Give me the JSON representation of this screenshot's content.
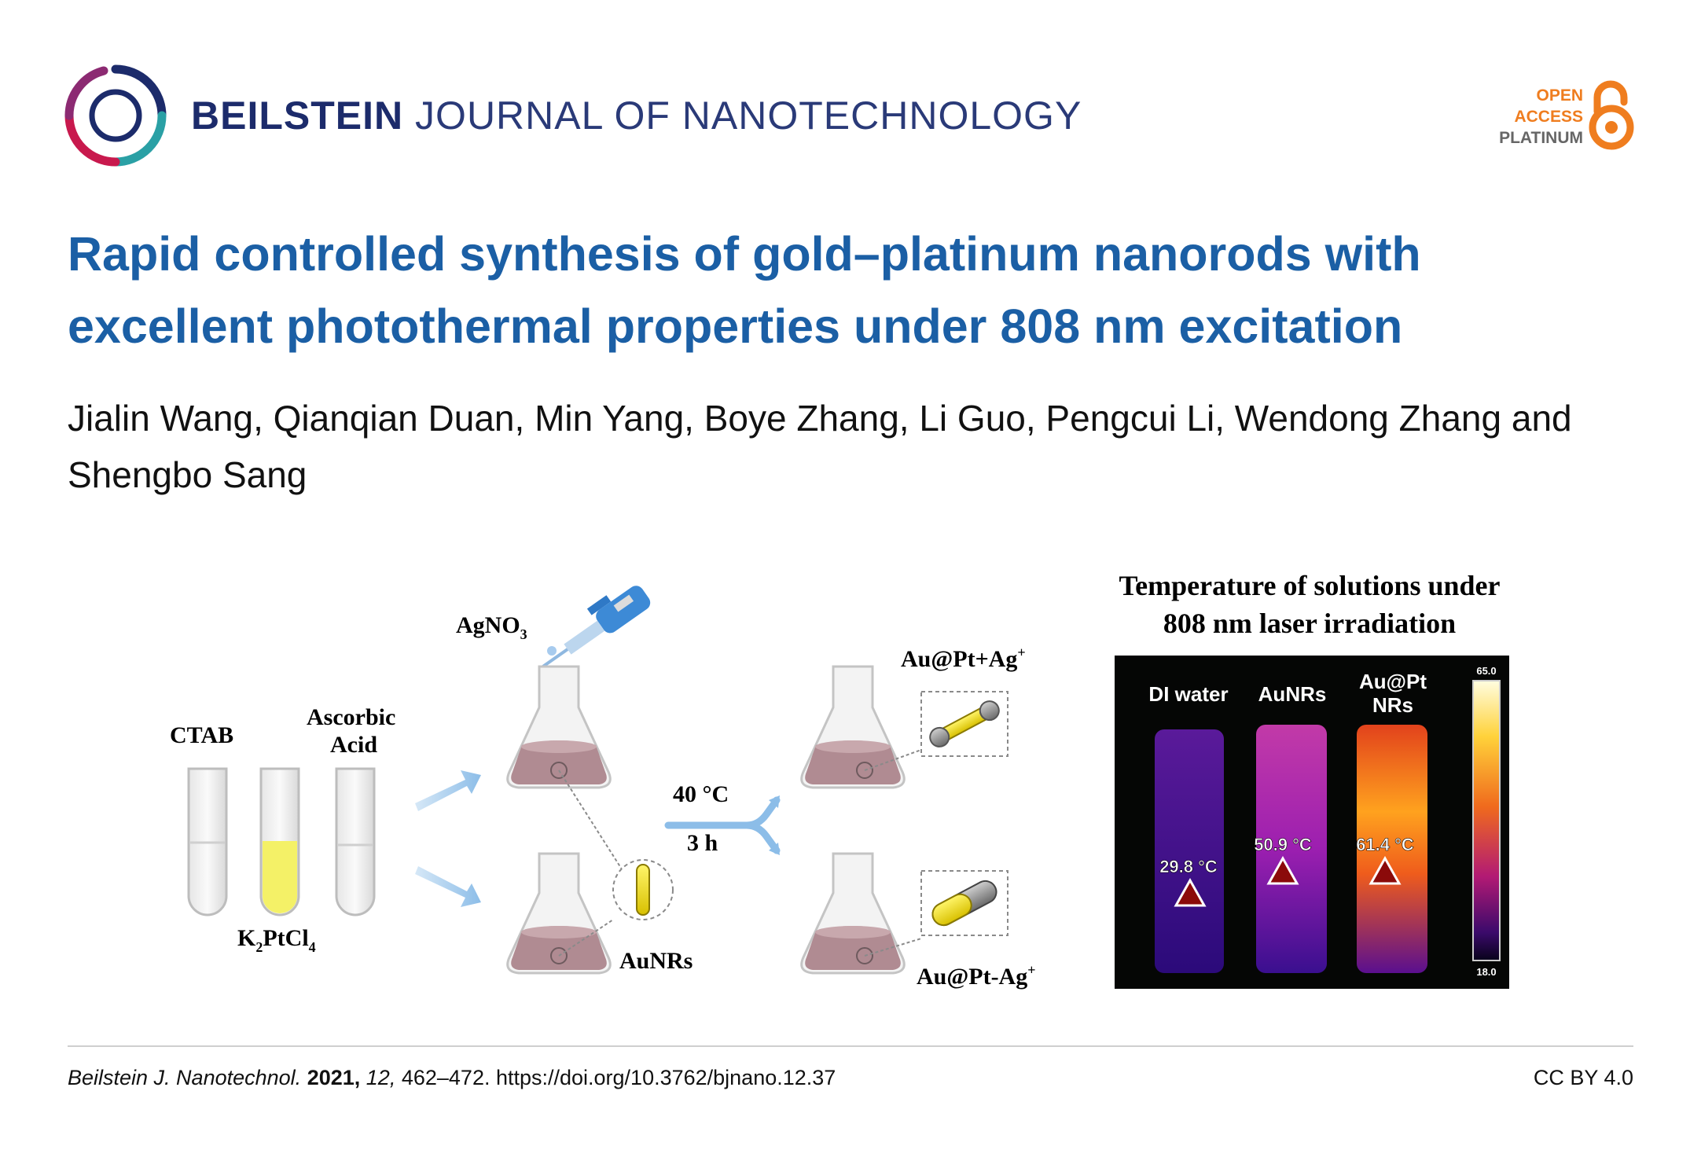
{
  "header": {
    "journal_bold": "BEILSTEIN",
    "journal_rest": "JOURNAL OF NANOTECHNOLOGY",
    "open_access": {
      "line1": "OPEN",
      "line2": "ACCESS",
      "line3": "PLATINUM"
    },
    "colors": {
      "journal": "#1c2b6b",
      "open_access": "#ef7d1f",
      "title": "#1b5fa5"
    }
  },
  "article": {
    "title": "Rapid controlled synthesis of gold–platinum nanorods with excellent photothermal properties under 808 nm excitation",
    "authors": "Jialin Wang, Qianqian Duan, Min Yang, Boye Zhang, Li Guo, Pengcui Li, Wendong Zhang and Shengbo Sang"
  },
  "graphic": {
    "reagents": {
      "ctab": "CTAB",
      "ascorbic_1": "Ascorbic",
      "ascorbic_2": "Acid",
      "k2ptcl4_k": "K",
      "k2ptcl4_sub1": "2",
      "k2ptcl4_ptcl": "PtCl",
      "k2ptcl4_sub2": "4"
    },
    "agno3": {
      "main": "AgNO",
      "sub": "3"
    },
    "aunrs": "AuNRs",
    "conditions": {
      "temp": "40 °C",
      "time": "3 h"
    },
    "products": {
      "plus_main": "Au@Pt+Ag",
      "plus_sup": "+",
      "minus_main": "Au@Pt-Ag",
      "minus_sup": "+"
    },
    "thermal_title_1": "Temperature of solutions under",
    "thermal_title_2": "808 nm laser irradiation",
    "thermal": {
      "samples": [
        {
          "label": "DI water",
          "label2": "",
          "temp": "29.8 °C"
        },
        {
          "label": "AuNRs",
          "label2": "",
          "temp": "50.9 °C"
        },
        {
          "label": "Au@Pt",
          "label2": "NRs",
          "temp": "61.4 °C"
        }
      ],
      "scale_max": "65.0",
      "scale_min": "18.0"
    }
  },
  "footer": {
    "journal_abbrev": "Beilstein J. Nanotechnol.",
    "year": "2021,",
    "volume": "12,",
    "pages_doi": "462–472. https://doi.org/10.3762/bjnano.12.37",
    "license": "CC BY 4.0"
  }
}
